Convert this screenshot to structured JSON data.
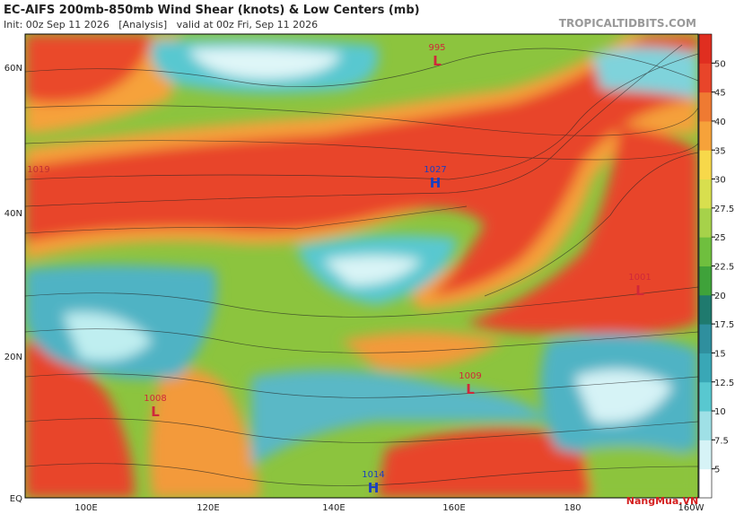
{
  "header": {
    "title": "EC-AIFS 200mb-850mb Wind Shear (knots) & Low Centers (mb)",
    "subtitle": "Init: 00z Sep 11 2026   [Analysis]   valid at 00z Fri, Sep 11 2026",
    "site": "TROPICALTIDBITS.COM"
  },
  "map": {
    "lat_labels": [
      "60N",
      "40N",
      "20N",
      "EQ"
    ],
    "lon_labels": [
      "100E",
      "120E",
      "140E",
      "160E",
      "180",
      "160W"
    ],
    "centers": [
      {
        "pressure": "995",
        "letter": "L"
      },
      {
        "pressure": "1027",
        "letter": "H"
      },
      {
        "pressure": "1019",
        "letter": ""
      },
      {
        "pressure": "1001",
        "letter": "L"
      },
      {
        "pressure": "1009",
        "letter": "L"
      },
      {
        "pressure": "1008",
        "letter": "L"
      },
      {
        "pressure": "1014",
        "letter": "H"
      }
    ]
  },
  "colorbar": {
    "ticks": [
      5,
      7.5,
      10,
      12.5,
      15,
      17.5,
      20,
      22.5,
      25,
      27.5,
      30,
      35,
      40,
      45,
      50
    ]
  },
  "watermark": "NangMua.VN"
}
